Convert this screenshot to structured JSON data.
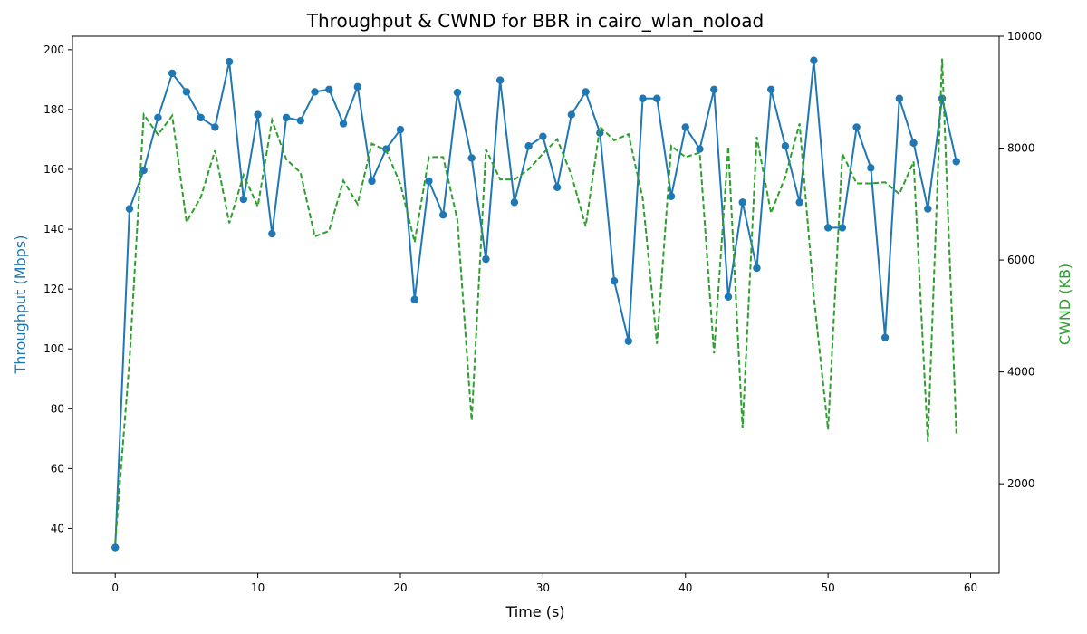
{
  "chart_data": {
    "type": "line",
    "title": "Throughput & CWND for BBR in cairo_wlan_noload",
    "xlabel": "Time (s)",
    "ylabel_left": "Throughput (Mbps)",
    "ylabel_right": "CWND (KB)",
    "xlim": [
      -3,
      62
    ],
    "ylim_left": [
      25,
      204.5
    ],
    "ylim_right": [
      400,
      10000
    ],
    "x_ticks": [
      0,
      10,
      20,
      30,
      40,
      50,
      60
    ],
    "y_left_ticks": [
      40,
      60,
      80,
      100,
      120,
      140,
      160,
      180,
      200
    ],
    "y_right_ticks": [
      2000,
      4000,
      6000,
      8000,
      10000
    ],
    "grid": false,
    "x": [
      0,
      1,
      2,
      3,
      4,
      5,
      6,
      7,
      8,
      9,
      10,
      11,
      12,
      13,
      14,
      15,
      16,
      17,
      18,
      19,
      20,
      21,
      22,
      23,
      24,
      25,
      26,
      27,
      28,
      29,
      30,
      31,
      32,
      33,
      34,
      35,
      36,
      37,
      38,
      39,
      40,
      41,
      42,
      43,
      44,
      45,
      46,
      47,
      48,
      49,
      50,
      51,
      52,
      53,
      54,
      55,
      56,
      57,
      58,
      59
    ],
    "series": [
      {
        "axis": "left",
        "color": "#1f77b4",
        "style": "solid-markers",
        "values": [
          33.6,
          146.8,
          159.7,
          177.3,
          192.1,
          185.9,
          177.3,
          174.1,
          196.0,
          150.0,
          178.3,
          138.5,
          177.3,
          176.3,
          185.9,
          186.7,
          175.3,
          187.6,
          156.1,
          166.8,
          173.3,
          116.5,
          156.1,
          144.8,
          185.7,
          163.8,
          130.0,
          189.8,
          149.0,
          167.8,
          171.0,
          154.0,
          178.3,
          185.9,
          172.2,
          122.7,
          102.6,
          183.7,
          183.7,
          151.0,
          174.1,
          166.8,
          186.7,
          117.4,
          149.0,
          127.0,
          186.7,
          167.8,
          149.0,
          196.4,
          140.5,
          140.5,
          174.1,
          160.5,
          103.8,
          183.7,
          168.8,
          146.8,
          183.7,
          162.6
        ]
      },
      {
        "axis": "right",
        "color": "#2ca02c",
        "style": "dashed",
        "values": [
          950,
          4200,
          8600,
          8240,
          8580,
          6680,
          7120,
          7960,
          6660,
          7520,
          6960,
          8500,
          7800,
          7560,
          6420,
          6520,
          7420,
          7000,
          8080,
          7960,
          7360,
          6320,
          7840,
          7840,
          6720,
          3130,
          7980,
          7440,
          7440,
          7620,
          7900,
          8160,
          7520,
          6600,
          8380,
          8140,
          8250,
          7100,
          4500,
          8040,
          7840,
          7920,
          4330,
          8030,
          2990,
          8200,
          6840,
          7490,
          8440,
          5350,
          2970,
          7900,
          7370,
          7370,
          7390,
          7180,
          7760,
          2750,
          9600,
          2900
        ]
      }
    ]
  }
}
